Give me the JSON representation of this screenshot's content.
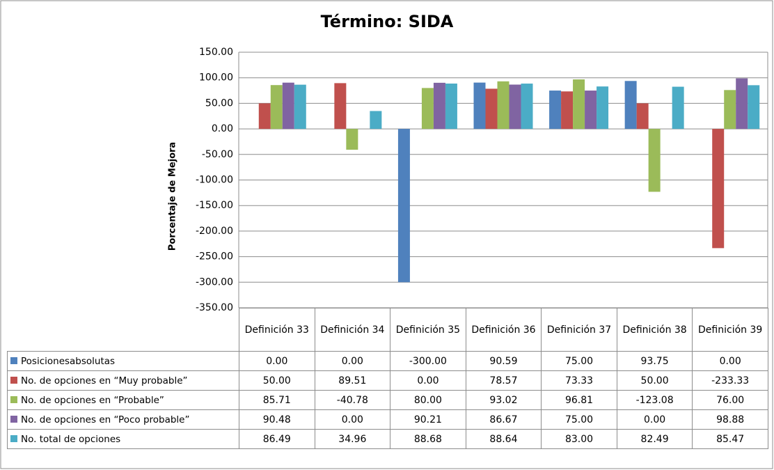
{
  "chart_data": {
    "type": "bar",
    "title": "Término: SIDA",
    "y_label": "Porcentaje de Mejora",
    "categories": [
      "Definición 33",
      "Definición 34",
      "Definición 35",
      "Definición 36",
      "Definición 37",
      "Definición 38",
      "Definición 39"
    ],
    "series": [
      {
        "name": "Posicionesabsolutas",
        "color": "#4f81bd",
        "values": [
          0,
          0,
          -300,
          90.59,
          75,
          93.75,
          0
        ],
        "value_labels": [
          "0.00",
          "0.00",
          "-300.00",
          "90.59",
          "75.00",
          "93.75",
          "0.00"
        ]
      },
      {
        "name": "No. de opciones en “Muy probable”",
        "color": "#c0504d",
        "values": [
          50,
          89.51,
          0,
          78.57,
          73.33,
          50,
          -233.33
        ],
        "value_labels": [
          "50.00",
          "89.51",
          "0.00",
          "78.57",
          "73.33",
          "50.00",
          "-233.33"
        ]
      },
      {
        "name": "No. de opciones en “Probable”",
        "color": "#9bbb59",
        "values": [
          85.71,
          -40.78,
          80,
          93.02,
          96.81,
          -123.08,
          76
        ],
        "value_labels": [
          "85.71",
          "-40.78",
          "80.00",
          "93.02",
          "96.81",
          "-123.08",
          "76.00"
        ]
      },
      {
        "name": "No. de opciones en “Poco probable”",
        "color": "#8064a2",
        "values": [
          90.48,
          0,
          90.21,
          86.67,
          75,
          0,
          98.88
        ],
        "value_labels": [
          "90.48",
          "0.00",
          "90.21",
          "86.67",
          "75.00",
          "0.00",
          "98.88"
        ]
      },
      {
        "name": "No. total de opciones",
        "color": "#4bacc6",
        "values": [
          86.49,
          34.96,
          88.68,
          88.64,
          83,
          82.49,
          85.47
        ],
        "value_labels": [
          "86.49",
          "34.96",
          "88.68",
          "88.64",
          "83.00",
          "82.49",
          "85.47"
        ]
      }
    ],
    "ylim": [
      -350,
      150
    ],
    "yticks": [
      {
        "value": -350,
        "label": "-350.00"
      },
      {
        "value": -300,
        "label": "-300.00"
      },
      {
        "value": -250,
        "label": "-250.00"
      },
      {
        "value": -200,
        "label": "-200.00"
      },
      {
        "value": -150,
        "label": "-150.00"
      },
      {
        "value": -100,
        "label": "-100.00"
      },
      {
        "value": -50,
        "label": "-50.00"
      },
      {
        "value": 0,
        "label": "0.00"
      },
      {
        "value": 50,
        "label": "50.00"
      },
      {
        "value": 100,
        "label": "100.00"
      },
      {
        "value": 150,
        "label": "150.00"
      }
    ],
    "grid": true
  }
}
